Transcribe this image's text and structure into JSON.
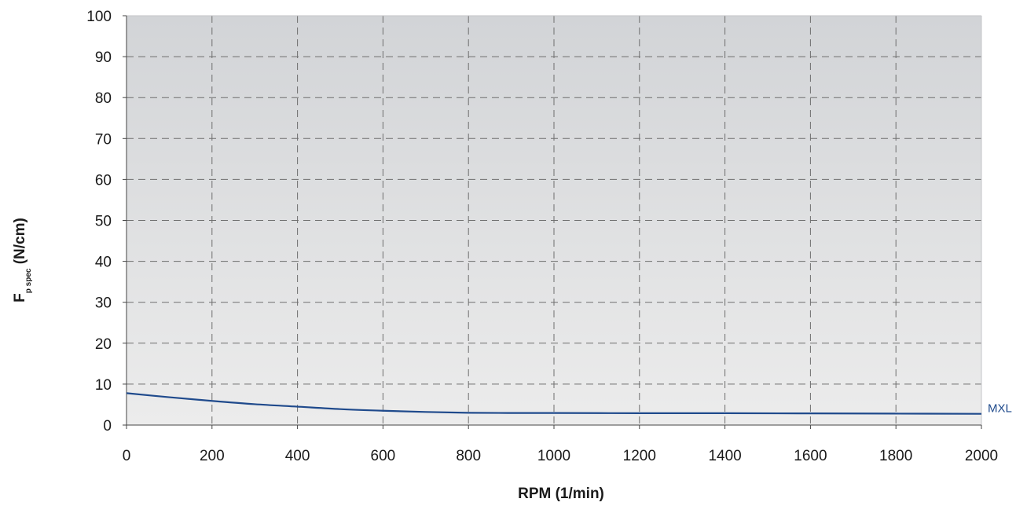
{
  "chart_data": {
    "type": "line",
    "title": "",
    "xlabel": "RPM (1/min)",
    "ylabel": {
      "main": "F",
      "subscript": "p spec",
      "unit": " (N/cm)"
    },
    "xlim": [
      0,
      2000
    ],
    "ylim": [
      0,
      100
    ],
    "x_ticks": [
      0,
      200,
      400,
      600,
      800,
      1000,
      1200,
      1400,
      1600,
      1800,
      2000
    ],
    "x_tick_labels": [
      "0",
      "200",
      "400",
      "600",
      "800",
      "1000",
      "1200",
      "1400",
      "1600",
      "1800",
      "2000"
    ],
    "y_ticks": [
      0,
      10,
      20,
      30,
      40,
      50,
      60,
      70,
      80,
      90,
      100
    ],
    "y_tick_labels": [
      "0",
      "10",
      "20",
      "30",
      "40",
      "50",
      "60",
      "70",
      "80",
      "90",
      "100"
    ],
    "grid": true,
    "grid_style": "dashed",
    "plot_background": [
      "#d2d4d7",
      "#ececec"
    ],
    "legend": "inline label at right end of series",
    "series": [
      {
        "name": "MXL",
        "color": "#1f4a8c",
        "x": [
          0,
          100,
          200,
          300,
          400,
          500,
          600,
          700,
          800,
          900,
          1000,
          1200,
          1400,
          1600,
          1800,
          2000
        ],
        "y": [
          7.8,
          6.8,
          5.9,
          5.1,
          4.5,
          3.9,
          3.5,
          3.2,
          3.0,
          2.95,
          2.95,
          2.9,
          2.9,
          2.85,
          2.8,
          2.75
        ]
      }
    ]
  }
}
